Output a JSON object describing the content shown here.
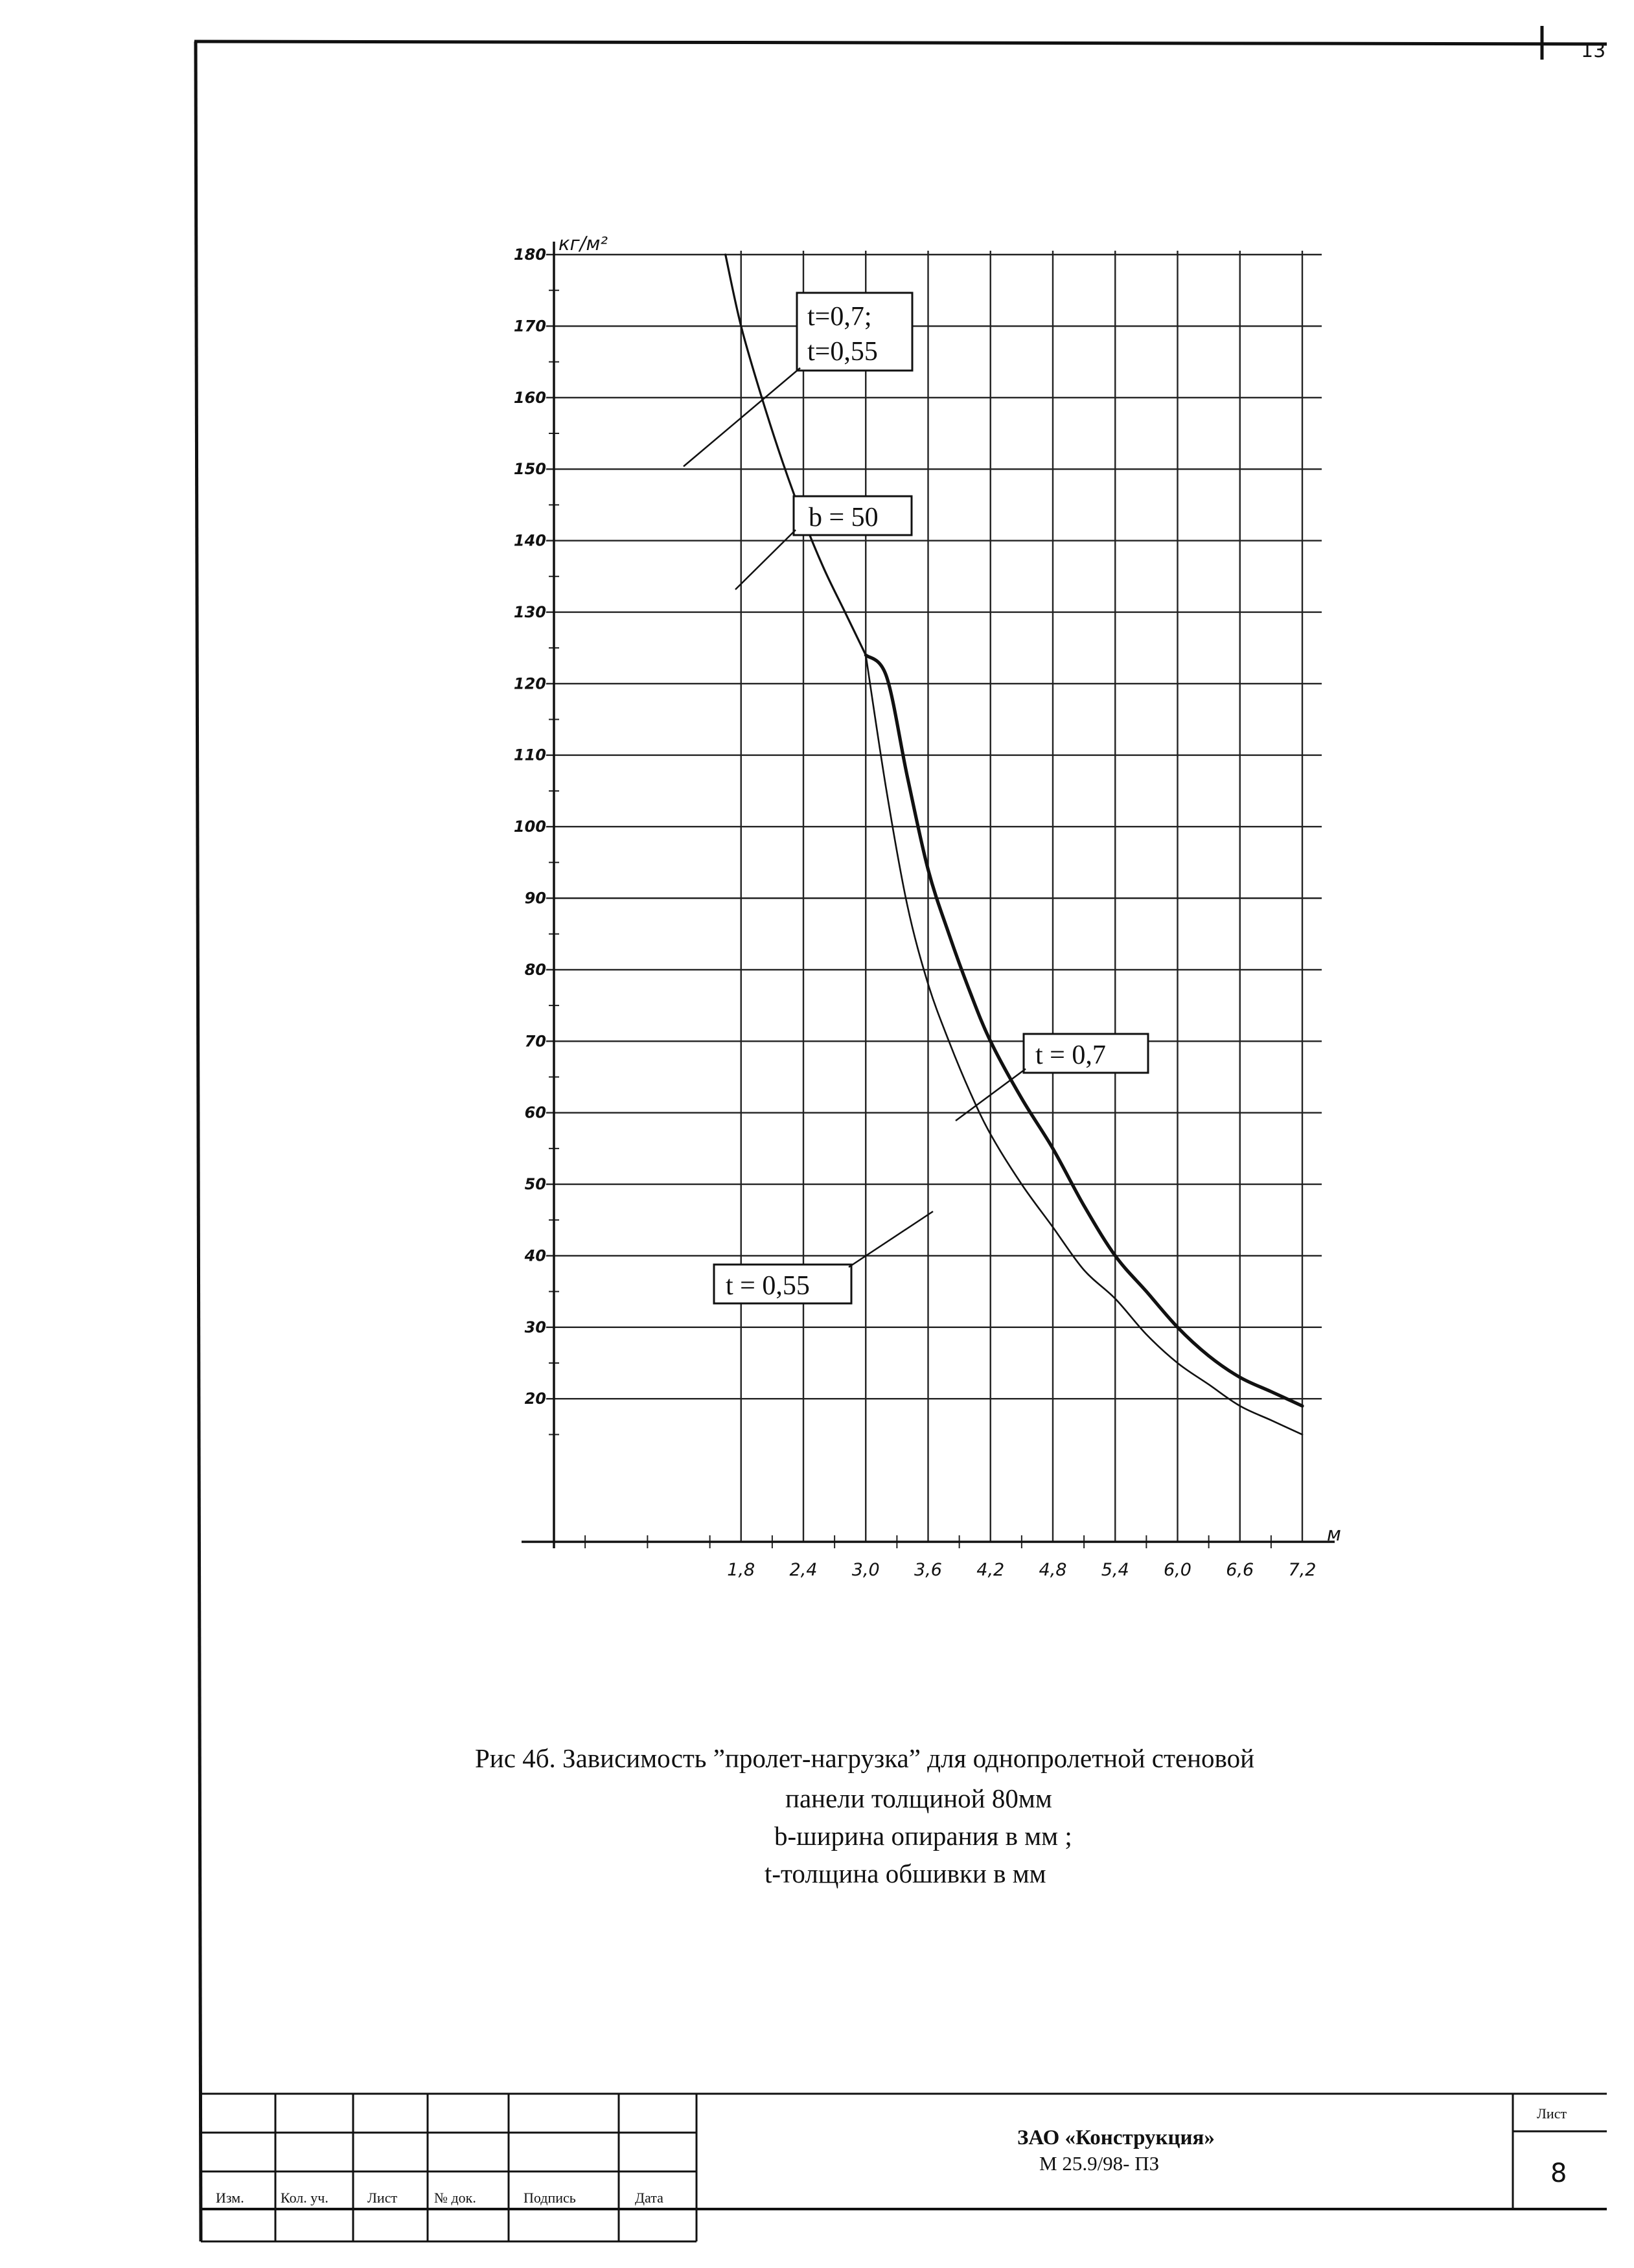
{
  "corner_number": "13",
  "chart_data": {
    "type": "line",
    "title": "",
    "ylabel": "кг/м²",
    "xlabel": "м",
    "xlim": [
      0,
      7.2
    ],
    "ylim": [
      0,
      180
    ],
    "grid": true,
    "x_ticks": [
      1.8,
      2.4,
      3.0,
      3.6,
      4.2,
      4.8,
      5.4,
      6.0,
      6.6,
      7.2
    ],
    "x_tick_labels": [
      "1,8",
      "2,4",
      "3,0",
      "3,6",
      "4,2",
      "4,8",
      "5,4",
      "6,0",
      "6,6",
      "7,2"
    ],
    "y_ticks": [
      20,
      30,
      40,
      50,
      60,
      70,
      80,
      90,
      100,
      110,
      120,
      130,
      140,
      150,
      160,
      170,
      180
    ],
    "y_tick_labels": [
      "20",
      "30",
      "40",
      "50",
      "60",
      "70",
      "80",
      "90",
      "100",
      "110",
      "120",
      "130",
      "140",
      "150",
      "160",
      "170",
      "180"
    ],
    "series": [
      {
        "name": "t=0,7; t=0,55 / b = 50",
        "x": [
          1.65,
          1.8,
          2.0,
          2.2,
          2.4,
          2.6,
          2.8,
          3.0
        ],
        "y": [
          180,
          170,
          160,
          151,
          143,
          136,
          130,
          124
        ]
      },
      {
        "name": "t = 0,7",
        "x": [
          3.0,
          3.2,
          3.4,
          3.6,
          3.8,
          4.0,
          4.2,
          4.5,
          4.8,
          5.1,
          5.4,
          5.7,
          6.0,
          6.3,
          6.6,
          6.9,
          7.2
        ],
        "y": [
          124,
          121,
          107,
          94,
          85,
          77,
          70,
          62,
          55,
          47,
          40,
          35,
          30,
          26,
          23,
          21,
          19
        ]
      },
      {
        "name": "t = 0,55",
        "x": [
          3.0,
          3.2,
          3.4,
          3.6,
          3.8,
          4.0,
          4.2,
          4.5,
          4.8,
          5.1,
          5.4,
          5.7,
          6.0,
          6.3,
          6.6,
          6.9,
          7.2
        ],
        "y": [
          124,
          105,
          89,
          78,
          70,
          63,
          57,
          50,
          44,
          38,
          34,
          29,
          25,
          22,
          19,
          17,
          15
        ]
      }
    ],
    "annotations": [
      {
        "text": "t=0,7;",
        "line": 1
      },
      {
        "text": "t=0,55",
        "line": 2
      },
      {
        "text": "b = 50"
      },
      {
        "text": "t = 0,7"
      },
      {
        "text": "t = 0,55"
      }
    ]
  },
  "caption": {
    "line1": "Рис 4б. Зависимость ”пролет-нагрузка” для однопролетной стеновой",
    "line2": "панели толщиной 80мм",
    "line3": "b-ширина опирания в мм ;",
    "line4": "t-толщина обшивки в мм"
  },
  "title_block": {
    "columns": [
      "Изм.",
      "Кол. уч.",
      "Лист",
      "№ док.",
      "Подпись",
      "Дата"
    ],
    "org": "ЗАО «Конструкция»",
    "code": "М 25.9/98- ПЗ",
    "sheet_label": "Лист",
    "sheet_number": "8"
  }
}
